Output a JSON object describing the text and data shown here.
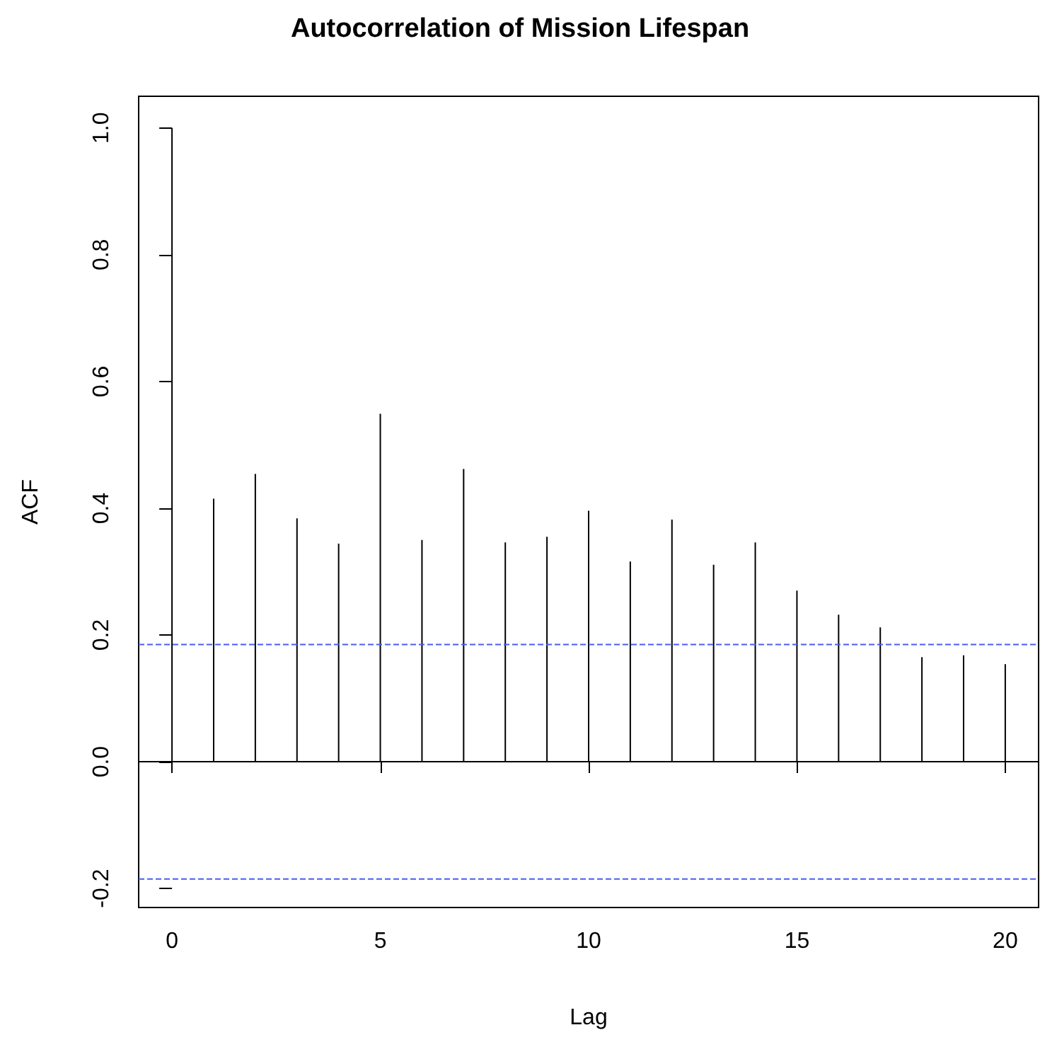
{
  "chart_data": {
    "type": "bar",
    "title": "Autocorrelation of Mission Lifespan",
    "xlabel": "Lag",
    "ylabel": "ACF",
    "x": [
      0,
      1,
      2,
      3,
      4,
      5,
      6,
      7,
      8,
      9,
      10,
      11,
      12,
      13,
      14,
      15,
      16,
      17,
      18,
      19,
      20
    ],
    "series": [
      {
        "color": "#000000",
        "values": [
          1.0,
          0.415,
          0.454,
          0.384,
          0.344,
          0.549,
          0.35,
          0.462,
          0.346,
          0.355,
          0.396,
          0.316,
          0.382,
          0.311,
          0.346,
          0.27,
          0.232,
          0.212,
          0.165,
          0.168,
          0.154
        ]
      }
    ],
    "xlim": [
      -0.8,
      20.8
    ],
    "xticks": [
      0,
      5,
      10,
      15,
      20
    ],
    "ylim": [
      -0.23,
      1.05
    ],
    "yticks": [
      -0.2,
      {
        "value": 0,
        "label": "0.0"
      },
      0.2,
      0.4,
      0.6,
      0.8,
      {
        "value": 1,
        "label": "1.0"
      }
    ],
    "ref_lines": [
      {
        "axis": "y",
        "value": 0,
        "color": "#000000",
        "line_style": "solid"
      },
      {
        "axis": "y",
        "value": 0.185,
        "color": "#4b5cf0",
        "line_style": "dashed"
      },
      {
        "axis": "y",
        "value": -0.185,
        "color": "#4b5cf0",
        "line_style": "dashed"
      }
    ],
    "grid": false
  }
}
